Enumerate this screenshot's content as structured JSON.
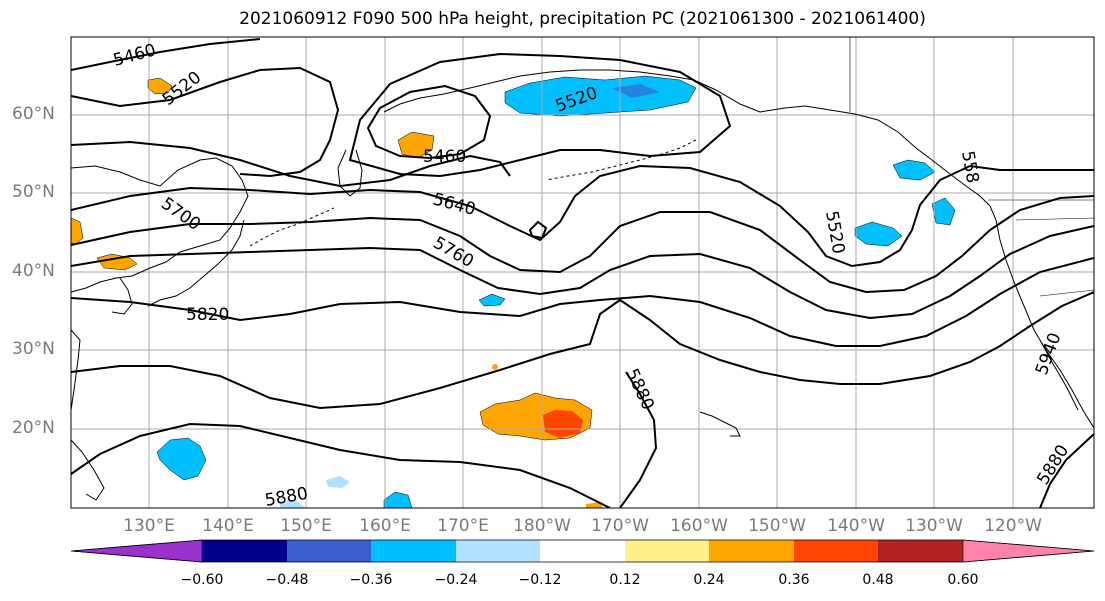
{
  "title": "2021060912 F090 500 hPa height, precipitation PC (2021061300 - 2021061400)",
  "lat_labels": [
    "60°N",
    "50°N",
    "40°N",
    "30°N",
    "20°N"
  ],
  "lon_labels": [
    "130°E",
    "140°E",
    "150°E",
    "160°E",
    "170°E",
    "180°W",
    "170°W",
    "160°W",
    "150°W",
    "140°W",
    "130°W",
    "120°W"
  ],
  "contour_labels": {
    "c5460a": "5460",
    "c5520a": "5520",
    "c5460b": "5460",
    "c5520b": "5520",
    "c5640": "5640",
    "c5700": "5700",
    "c5760": "5760",
    "c5820": "5820",
    "c5520c": "5520",
    "c558": "558",
    "c5880a": "5880",
    "c5880b": "5880",
    "c5880c": "5880",
    "c5940": "5940"
  },
  "colorbar": {
    "ticks": [
      "−0.60",
      "−0.48",
      "−0.36",
      "−0.24",
      "−0.12",
      "0.12",
      "0.24",
      "0.36",
      "0.48",
      "0.60"
    ],
    "colors": [
      "#9932cc",
      "#00008b",
      "#3a5fcd",
      "#00bfff",
      "#b0e2ff",
      "#ffffff",
      "#fff08c",
      "#ffa500",
      "#ff4500",
      "#b22222",
      "#ff82ab"
    ]
  },
  "colors": {
    "positive_low": "#fff08c",
    "positive_mid": "#ffa500",
    "positive_high": "#ff4500",
    "negative_low": "#b0e2ff",
    "negative_mid": "#00bfff",
    "negative_high": "#3a5fcd"
  }
}
